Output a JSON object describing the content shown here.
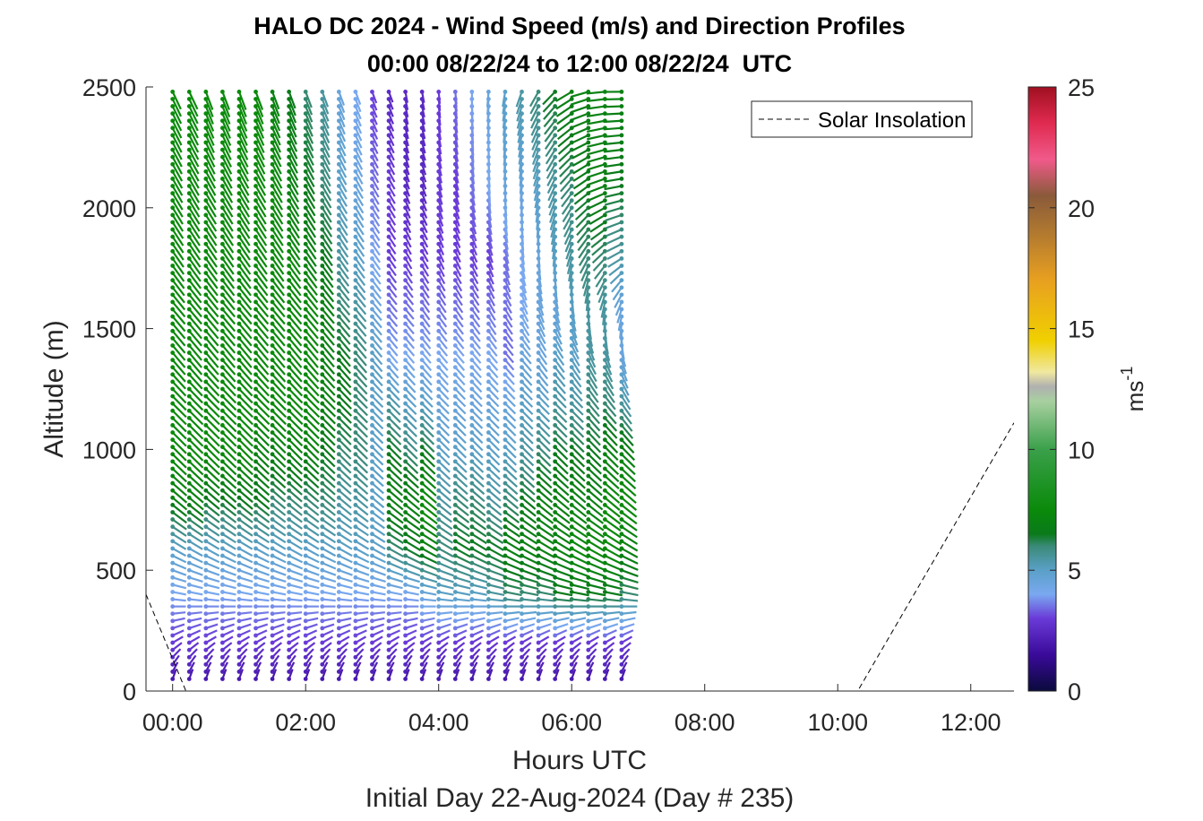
{
  "chart_data": {
    "type": "scatter",
    "subtype": "wind-barb-profile",
    "title": "HALO DC 2024 - Wind Speed (m/s) and Direction Profiles",
    "subtitle": "00:00 08/22/24 to 12:00 08/22/24  UTC",
    "xlabel": "Hours UTC",
    "xlabel2": "Initial Day 22-Aug-2024 (Day # 235)",
    "ylabel": "Altitude (m)",
    "xlim": [
      -0.4,
      12.65
    ],
    "ylim": [
      0,
      2500
    ],
    "x_ticks": [
      0,
      2,
      4,
      6,
      8,
      10,
      12
    ],
    "x_tick_labels": [
      "00:00",
      "02:00",
      "04:00",
      "06:00",
      "08:00",
      "10:00",
      "12:00"
    ],
    "y_ticks": [
      0,
      500,
      1000,
      1500,
      2000,
      2500
    ],
    "y_tick_labels": [
      "0",
      "500",
      "1000",
      "1500",
      "2000",
      "2500"
    ],
    "legend": {
      "position": "top-right",
      "entries": [
        "Solar Insolation"
      ]
    },
    "colorbar": {
      "label": "ms",
      "label_superscript": "-1",
      "range": [
        0,
        25
      ],
      "ticks": [
        0,
        5,
        10,
        15,
        20,
        25
      ],
      "tick_labels": [
        "0",
        "5",
        "10",
        "15",
        "20",
        "25"
      ],
      "stops": [
        [
          0,
          "#0a0a3c"
        ],
        [
          1.5,
          "#3a0a9a"
        ],
        [
          3,
          "#6a3ad8"
        ],
        [
          4,
          "#7aa8f0"
        ],
        [
          5,
          "#5aa0c8"
        ],
        [
          6,
          "#3a8a78"
        ],
        [
          6.5,
          "#0a7a1a"
        ],
        [
          7.5,
          "#0a8a0a"
        ],
        [
          10,
          "#3aa04a"
        ],
        [
          12,
          "#a8d0a0"
        ],
        [
          12.6,
          "#b0b0b0"
        ],
        [
          13.2,
          "#f0e8a0"
        ],
        [
          14.5,
          "#f0d000"
        ],
        [
          17,
          "#e8a020"
        ],
        [
          19,
          "#b07830"
        ],
        [
          20.5,
          "#8a5a3a"
        ],
        [
          22,
          "#f05a8a"
        ],
        [
          23.5,
          "#e02a50"
        ],
        [
          25,
          "#a01020"
        ]
      ]
    },
    "solar_insolation": {
      "x": [
        -0.4,
        0.2,
        10.3,
        12.65
      ],
      "y": [
        400,
        0,
        0,
        1110
      ]
    },
    "profiles": {
      "times": [
        0,
        0.25,
        0.5,
        0.75,
        1.0,
        1.25,
        1.5,
        1.75,
        2.0,
        2.25,
        2.5,
        2.75,
        3.0,
        3.25,
        3.5,
        3.75,
        4.0,
        4.25,
        4.5,
        4.75,
        5.0,
        5.25,
        5.5,
        5.75,
        6.0,
        6.25,
        6.5,
        6.75
      ],
      "altitude_start": 50,
      "altitude_step": 30,
      "altitude_max": 2500,
      "speed_profiles": [
        [
          2,
          3,
          4,
          5,
          7,
          7.5,
          7.5,
          7.5,
          7.5,
          7.5,
          7.5,
          7.5
        ],
        [
          2,
          3,
          4,
          5,
          7,
          7.5,
          7.5,
          7.5,
          7.5,
          7.5,
          7.5,
          7.5
        ],
        [
          2,
          3,
          4,
          5,
          6.5,
          7.5,
          7.5,
          7.5,
          7.5,
          7.5,
          7.5,
          7.5
        ],
        [
          2,
          3,
          4,
          5,
          6.5,
          7.5,
          7.5,
          7.5,
          7.5,
          7.5,
          7.5,
          7.5
        ],
        [
          2,
          3,
          4,
          5,
          6.5,
          7.5,
          7.5,
          7.5,
          7.5,
          7.5,
          7.5,
          7.5
        ],
        [
          2,
          3,
          4,
          5,
          6.5,
          7,
          7.5,
          7.5,
          7.5,
          7.5,
          7.5,
          7.5
        ],
        [
          2,
          3,
          4,
          5,
          6,
          7,
          7.5,
          7.5,
          7.5,
          7.5,
          7.5,
          7
        ],
        [
          2,
          3,
          4,
          5,
          6,
          7,
          7.5,
          7.5,
          7.5,
          7.5,
          7,
          6.5
        ],
        [
          2,
          3,
          4,
          5,
          6,
          7,
          7.5,
          7.5,
          7.5,
          7,
          6.5,
          6
        ],
        [
          2,
          3,
          4,
          5,
          6,
          6.5,
          7,
          7,
          7,
          6.5,
          6,
          5.5
        ],
        [
          2,
          3,
          4,
          5,
          5.5,
          6,
          6.5,
          6.5,
          6,
          5.5,
          5,
          4.5
        ],
        [
          2,
          3,
          4,
          5,
          5.5,
          6,
          6,
          6,
          5.5,
          5,
          4.5,
          4
        ],
        [
          2,
          3,
          4,
          5,
          5,
          5,
          5,
          5,
          4.5,
          4,
          3.5,
          3
        ],
        [
          2,
          3,
          4,
          6,
          7,
          6.5,
          5.5,
          4,
          3.5,
          3,
          3,
          2.5
        ],
        [
          2,
          3,
          4,
          6.5,
          7,
          6,
          5,
          4,
          3.5,
          3,
          2.5,
          2.5
        ],
        [
          2,
          3,
          4.5,
          7,
          7.5,
          6.5,
          5,
          4,
          3.5,
          3,
          2.5,
          2.5
        ],
        [
          2,
          3,
          5,
          6,
          5.5,
          5,
          4.5,
          4,
          3.5,
          3,
          3,
          3
        ],
        [
          2,
          3,
          5,
          6.5,
          6,
          5,
          4.5,
          4,
          3.5,
          3,
          3,
          3.5
        ],
        [
          2,
          3,
          5,
          6.5,
          6,
          5,
          4.5,
          4,
          3.5,
          3,
          3.5,
          4
        ],
        [
          2,
          3,
          5.5,
          6.5,
          5.5,
          5,
          4.5,
          4,
          3.5,
          3,
          4,
          4.5
        ],
        [
          2,
          3,
          6,
          7,
          6,
          5,
          4.5,
          3.5,
          3.5,
          3.5,
          4.5,
          5
        ],
        [
          2,
          3,
          6,
          7,
          6.5,
          5.5,
          5,
          4.5,
          4,
          4,
          4.5,
          5.5
        ],
        [
          2,
          3,
          6,
          7,
          7,
          6,
          5,
          4.5,
          4.5,
          4.5,
          5,
          6
        ],
        [
          2,
          3,
          6.5,
          7,
          7,
          6.5,
          5.5,
          5,
          4.5,
          5,
          5.5,
          6.5
        ],
        [
          2,
          3,
          6.5,
          7.5,
          7,
          6.5,
          5.5,
          5,
          5,
          5.5,
          6,
          7
        ],
        [
          2,
          3,
          6.5,
          7.5,
          7,
          6.5,
          6,
          5.5,
          5.5,
          6,
          6.5,
          7
        ],
        [
          2,
          3,
          6.5,
          7.5,
          7.5,
          7,
          6,
          5.5,
          5.5,
          6,
          7,
          7
        ],
        [
          2,
          3,
          6,
          7,
          7.5,
          7,
          5.5,
          4.5,
          4.5,
          5.5,
          6.5,
          7
        ]
      ],
      "direction_deg": [
        [
          200,
          240,
          280,
          300,
          310,
          315,
          315,
          320,
          320,
          325,
          330,
          335
        ],
        [
          200,
          240,
          280,
          300,
          310,
          315,
          315,
          320,
          320,
          325,
          330,
          335
        ],
        [
          200,
          240,
          280,
          300,
          310,
          315,
          315,
          320,
          320,
          325,
          330,
          340
        ],
        [
          200,
          240,
          280,
          300,
          310,
          315,
          315,
          320,
          320,
          325,
          330,
          340
        ],
        [
          200,
          240,
          280,
          300,
          310,
          315,
          315,
          320,
          320,
          325,
          330,
          340
        ],
        [
          200,
          240,
          280,
          300,
          310,
          315,
          315,
          320,
          320,
          325,
          330,
          340
        ],
        [
          200,
          240,
          280,
          300,
          310,
          315,
          315,
          320,
          320,
          325,
          330,
          340
        ],
        [
          200,
          240,
          280,
          300,
          310,
          315,
          315,
          320,
          320,
          325,
          330,
          340
        ],
        [
          200,
          240,
          280,
          300,
          310,
          315,
          315,
          320,
          320,
          325,
          330,
          340
        ],
        [
          200,
          240,
          280,
          300,
          310,
          315,
          315,
          320,
          320,
          325,
          330,
          340
        ],
        [
          200,
          240,
          280,
          300,
          310,
          315,
          315,
          320,
          320,
          325,
          330,
          340
        ],
        [
          200,
          240,
          280,
          300,
          310,
          315,
          315,
          320,
          320,
          325,
          330,
          340
        ],
        [
          200,
          240,
          280,
          300,
          310,
          315,
          315,
          320,
          320,
          325,
          330,
          340
        ],
        [
          200,
          240,
          280,
          300,
          310,
          315,
          315,
          320,
          320,
          325,
          330,
          340
        ],
        [
          200,
          240,
          280,
          300,
          310,
          315,
          315,
          320,
          320,
          330,
          340,
          350
        ],
        [
          200,
          240,
          280,
          300,
          310,
          315,
          315,
          320,
          325,
          330,
          340,
          350
        ],
        [
          200,
          240,
          280,
          300,
          310,
          315,
          315,
          320,
          325,
          335,
          345,
          355
        ],
        [
          200,
          240,
          280,
          300,
          310,
          315,
          315,
          320,
          325,
          335,
          345,
          355
        ],
        [
          200,
          240,
          280,
          300,
          310,
          315,
          315,
          320,
          325,
          335,
          350,
          360
        ],
        [
          200,
          240,
          280,
          300,
          310,
          315,
          315,
          320,
          330,
          340,
          355,
          5
        ],
        [
          200,
          240,
          280,
          300,
          310,
          315,
          315,
          320,
          330,
          345,
          360,
          10
        ],
        [
          200,
          240,
          280,
          300,
          310,
          315,
          315,
          320,
          335,
          350,
          5,
          20
        ],
        [
          200,
          240,
          280,
          300,
          310,
          315,
          315,
          325,
          340,
          355,
          15,
          30
        ],
        [
          200,
          240,
          280,
          300,
          310,
          315,
          315,
          325,
          345,
          5,
          25,
          45
        ],
        [
          200,
          240,
          280,
          300,
          310,
          315,
          315,
          330,
          350,
          15,
          40,
          60
        ],
        [
          200,
          240,
          280,
          300,
          310,
          315,
          320,
          335,
          360,
          30,
          55,
          75
        ],
        [
          200,
          240,
          280,
          300,
          310,
          315,
          320,
          340,
          10,
          45,
          70,
          85
        ],
        [
          200,
          240,
          280,
          300,
          310,
          315,
          325,
          345,
          20,
          60,
          80,
          90
        ]
      ],
      "profile_heights": [
        50,
        200,
        400,
        600,
        800,
        1000,
        1200,
        1400,
        1600,
        1800,
        2100,
        2500
      ]
    }
  }
}
